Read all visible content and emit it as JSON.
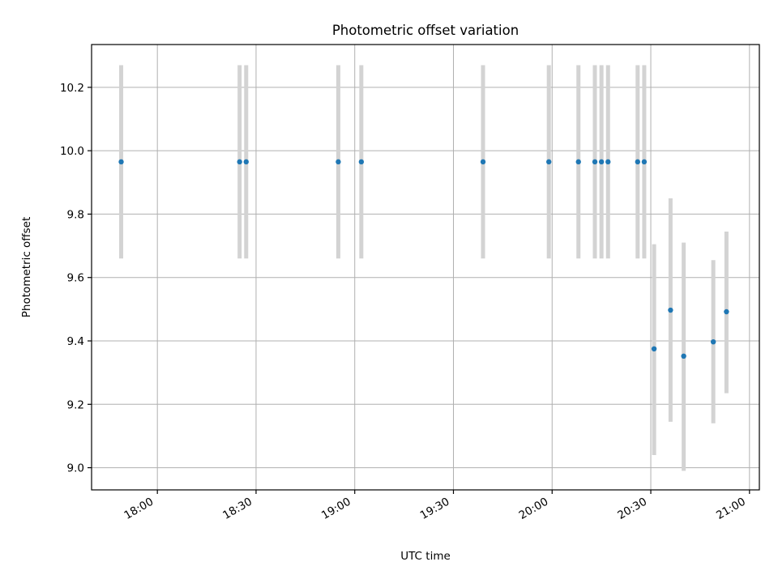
{
  "chart_data": {
    "type": "scatter",
    "title": "Photometric offset variation",
    "xlabel": "UTC time",
    "ylabel": "Photometric offset",
    "grid": true,
    "xlim": [
      "17:40",
      "21:03"
    ],
    "ylim": [
      8.93,
      10.335
    ],
    "x_ticks": [
      "18:00",
      "18:30",
      "19:00",
      "19:30",
      "20:00",
      "20:30",
      "21:00"
    ],
    "y_ticks": [
      "9.0",
      "9.2",
      "9.4",
      "9.6",
      "9.8",
      "10.0",
      "10.2"
    ],
    "colors": {
      "point": "#1f77b4",
      "error_bar": "#d3d3d3",
      "grid": "#b0b0b0"
    },
    "series": [
      {
        "points": [
          {
            "x": "17:49",
            "y": 9.965,
            "y_low": 9.66,
            "y_high": 10.27
          },
          {
            "x": "18:25",
            "y": 9.965,
            "y_low": 9.66,
            "y_high": 10.27
          },
          {
            "x": "18:27",
            "y": 9.965,
            "y_low": 9.66,
            "y_high": 10.27
          },
          {
            "x": "18:55",
            "y": 9.965,
            "y_low": 9.66,
            "y_high": 10.27
          },
          {
            "x": "19:02",
            "y": 9.965,
            "y_low": 9.66,
            "y_high": 10.27
          },
          {
            "x": "19:39",
            "y": 9.965,
            "y_low": 9.66,
            "y_high": 10.27
          },
          {
            "x": "19:59",
            "y": 9.965,
            "y_low": 9.66,
            "y_high": 10.27
          },
          {
            "x": "20:08",
            "y": 9.965,
            "y_low": 9.66,
            "y_high": 10.27
          },
          {
            "x": "20:13",
            "y": 9.965,
            "y_low": 9.66,
            "y_high": 10.27
          },
          {
            "x": "20:15",
            "y": 9.965,
            "y_low": 9.66,
            "y_high": 10.27
          },
          {
            "x": "20:17",
            "y": 9.965,
            "y_low": 9.66,
            "y_high": 10.27
          },
          {
            "x": "20:26",
            "y": 9.965,
            "y_low": 9.66,
            "y_high": 10.27
          },
          {
            "x": "20:28",
            "y": 9.965,
            "y_low": 9.66,
            "y_high": 10.27
          },
          {
            "x": "20:31",
            "y": 9.375,
            "y_low": 9.04,
            "y_high": 9.705
          },
          {
            "x": "20:36",
            "y": 9.497,
            "y_low": 9.145,
            "y_high": 9.85
          },
          {
            "x": "20:40",
            "y": 9.352,
            "y_low": 8.99,
            "y_high": 9.71
          },
          {
            "x": "20:49",
            "y": 9.397,
            "y_low": 9.14,
            "y_high": 9.655
          },
          {
            "x": "20:53",
            "y": 9.492,
            "y_low": 9.235,
            "y_high": 9.745
          }
        ]
      }
    ]
  }
}
